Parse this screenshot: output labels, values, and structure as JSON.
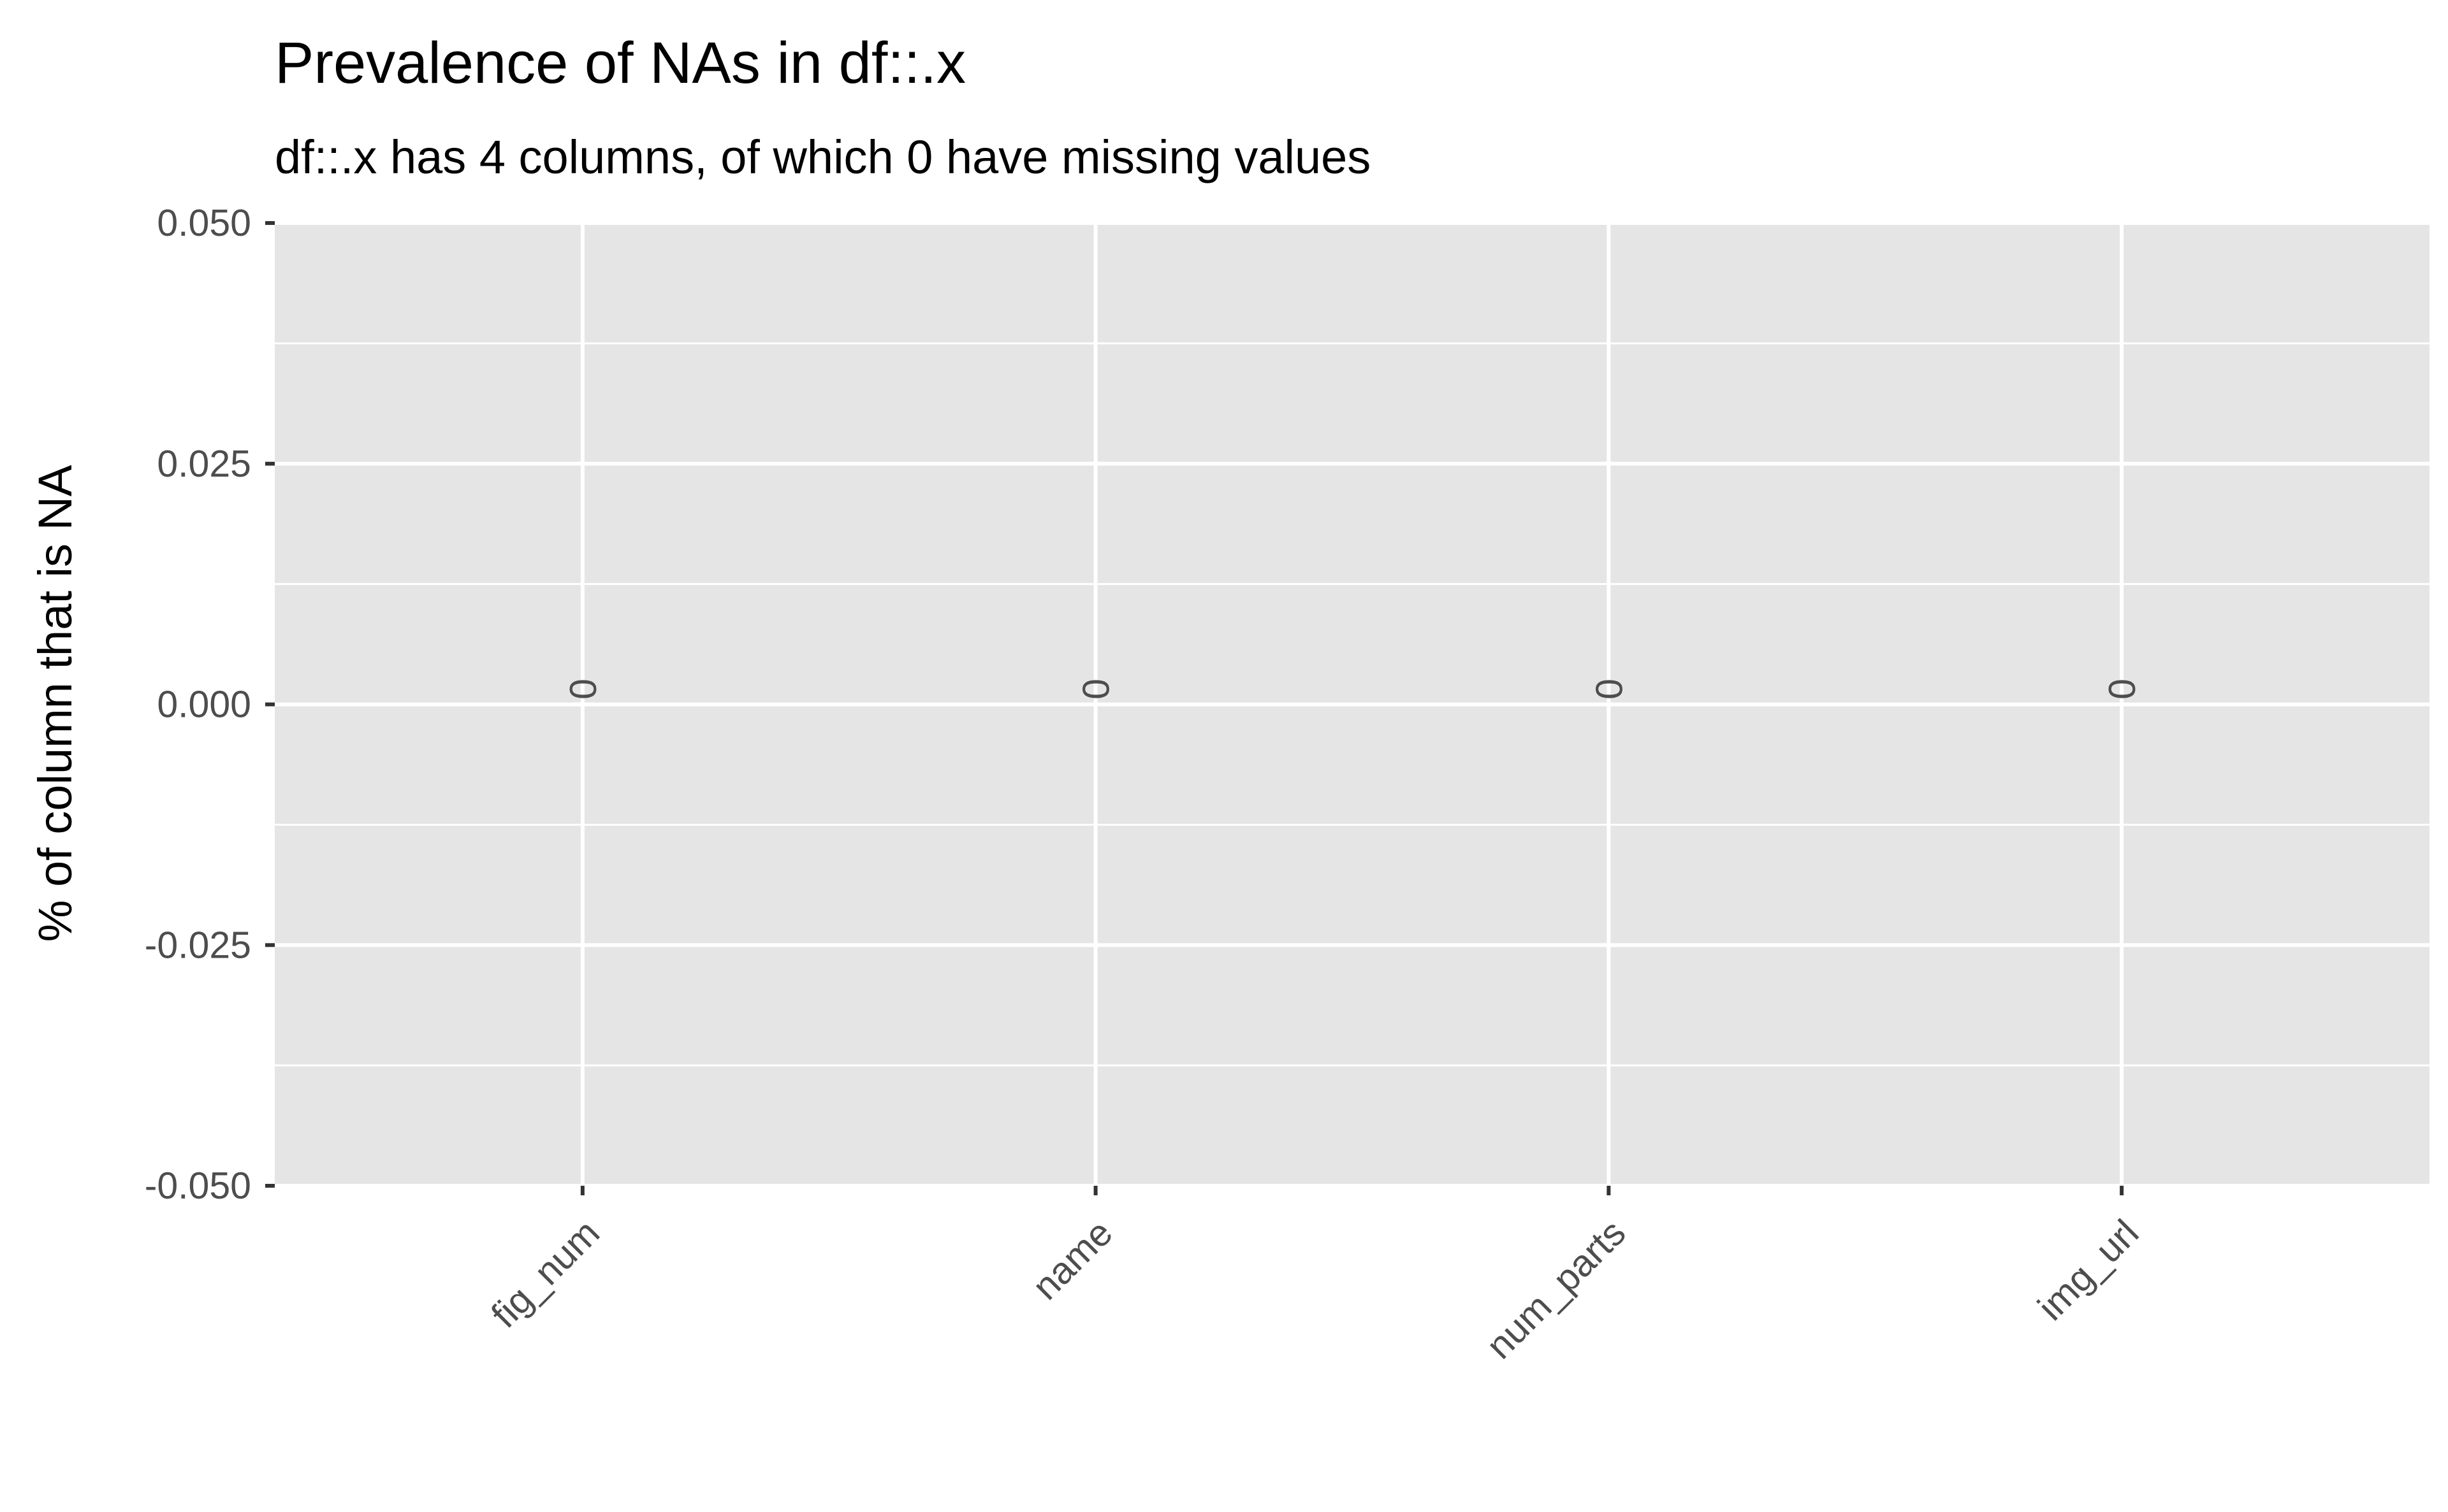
{
  "chart_data": {
    "type": "bar",
    "title": "Prevalence of NAs in df::.x",
    "subtitle": "df::.x has 4 columns, of which 0 have missing values",
    "xlabel": "",
    "ylabel": "% of column that is NA",
    "categories": [
      "fig_num",
      "name",
      "num_parts",
      "img_url"
    ],
    "values": [
      0,
      0,
      0,
      0
    ],
    "data_labels": [
      "0",
      "0",
      "0",
      "0"
    ],
    "ylim": [
      -0.05,
      0.05
    ],
    "yticks": [
      -0.05,
      -0.025,
      0,
      0.025,
      0.05
    ],
    "ytick_labels": [
      "-0.050",
      "-0.025",
      "0.000",
      "0.025",
      "0.050"
    ],
    "grid": true,
    "legend": "none",
    "colors": {
      "panel_background": "#e5e5e5",
      "grid": "#ffffff",
      "tick_text": "#4d4d4d",
      "axis_tick": "#333333"
    }
  }
}
